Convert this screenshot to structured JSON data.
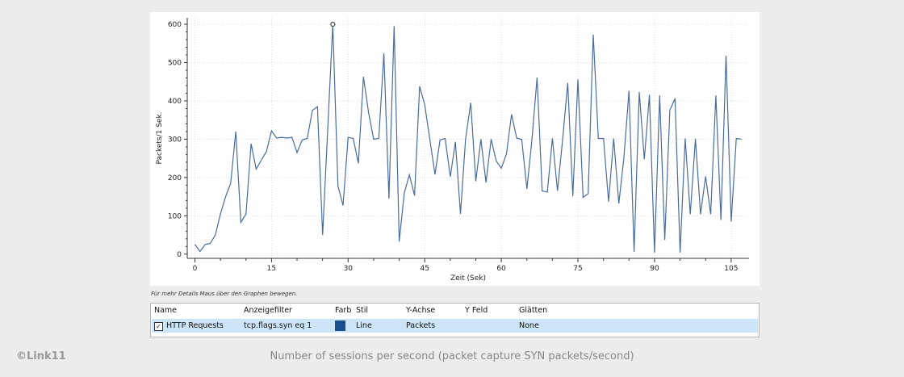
{
  "chart_data": {
    "type": "line",
    "xlabel": "Zeit (Sek)",
    "ylabel": "Packets/1 Sek.",
    "xlim": [
      -1.5,
      108.5
    ],
    "ylim": [
      -11,
      617
    ],
    "xticks": [
      0,
      15,
      30,
      45,
      60,
      75,
      90,
      105
    ],
    "yticks": [
      0,
      100,
      200,
      300,
      400,
      500,
      600
    ],
    "grid": true,
    "highlight": {
      "x": 27,
      "y": 600
    },
    "series": [
      {
        "name": "HTTP Requests",
        "color": "#4a6c9b",
        "x": [
          0,
          1,
          2,
          3,
          4,
          5,
          6,
          7,
          8,
          9,
          10,
          11,
          12,
          13,
          14,
          15,
          16,
          17,
          18,
          19,
          20,
          21,
          22,
          23,
          24,
          25,
          26,
          27,
          28,
          29,
          30,
          31,
          32,
          33,
          34,
          35,
          36,
          37,
          38,
          39,
          40,
          41,
          42,
          43,
          44,
          45,
          46,
          47,
          48,
          49,
          50,
          51,
          52,
          53,
          54,
          55,
          56,
          57,
          58,
          59,
          60,
          61,
          62,
          63,
          64,
          65,
          66,
          67,
          68,
          69,
          70,
          71,
          72,
          73,
          74,
          75,
          76,
          77,
          78,
          79,
          80,
          81,
          82,
          83,
          84,
          85,
          86,
          87,
          88,
          89,
          90,
          91,
          92,
          93,
          94,
          95,
          96,
          97,
          98,
          99,
          100,
          101,
          102,
          103,
          104,
          105,
          106,
          107
        ],
        "values": [
          25,
          7,
          25,
          28,
          50,
          105,
          150,
          185,
          320,
          83,
          105,
          288,
          222,
          245,
          268,
          322,
          303,
          305,
          303,
          305,
          265,
          298,
          302,
          375,
          385,
          50,
          325,
          600,
          178,
          127,
          305,
          302,
          237,
          463,
          370,
          300,
          302,
          524,
          145,
          595,
          33,
          160,
          207,
          153,
          438,
          390,
          300,
          208,
          298,
          302,
          202,
          293,
          105,
          300,
          395,
          190,
          300,
          187,
          300,
          243,
          224,
          262,
          365,
          303,
          299,
          170,
          300,
          461,
          165,
          162,
          302,
          165,
          300,
          447,
          151,
          456,
          148,
          158,
          573,
          302,
          302,
          137,
          302,
          132,
          252,
          426,
          6,
          423,
          248,
          416,
          4,
          414,
          37,
          376,
          406,
          4,
          302,
          104,
          301,
          104,
          203,
          104,
          414,
          89,
          518,
          85,
          302,
          300
        ]
      }
    ]
  },
  "hint": "Für mehr Details Maus über den Graphen bewegen.",
  "table": {
    "headers": [
      "Name",
      "Anzeigefilter",
      "Farb",
      "Stil",
      "Y-Achse",
      "Y Feld",
      "Glätten"
    ],
    "row": {
      "checked": true,
      "name": "HTTP Requests",
      "filter": "tcp.flags.syn eq 1",
      "color": "#1a4f8f",
      "style": "Line",
      "yaxis": "Packets",
      "yfield": "",
      "smoothing": "None"
    }
  },
  "footer": {
    "brand": "©Link11",
    "caption": "Number of sessions per second (packet capture SYN packets/second)"
  }
}
